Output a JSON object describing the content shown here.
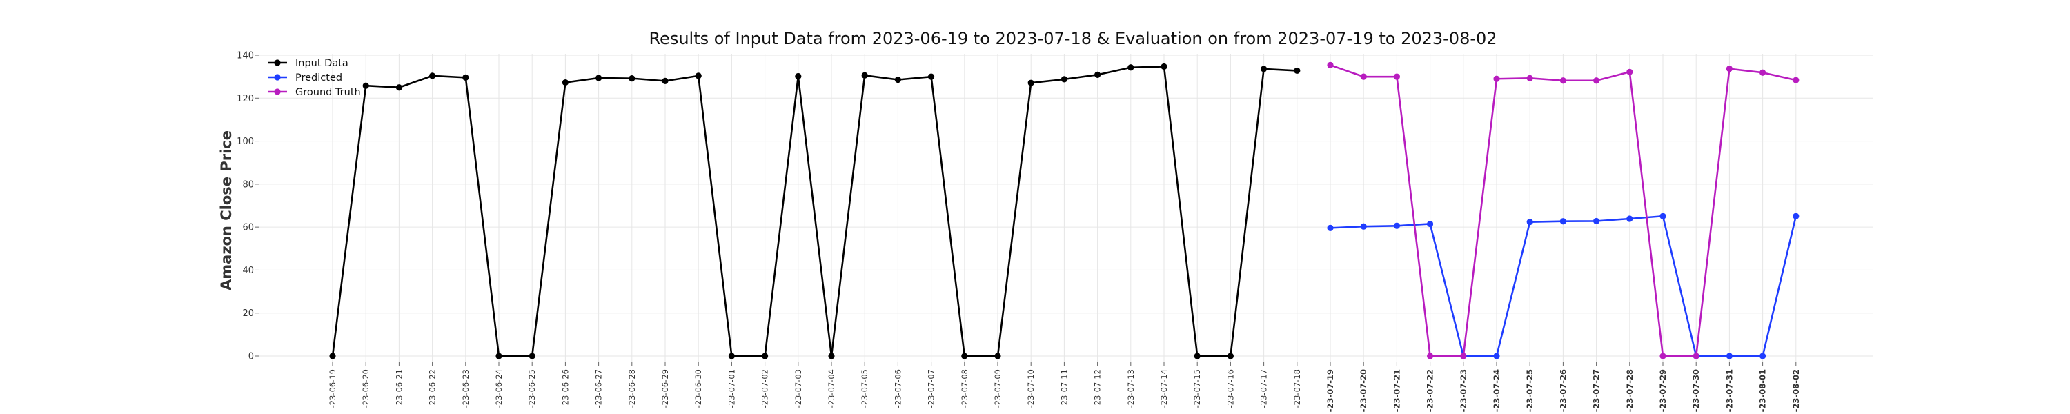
{
  "chart_data": {
    "type": "line",
    "title": "Results of Input Data from 2023-06-19 to 2023-07-18 & Evaluation on from 2023-07-19 to 2023-08-02",
    "xlabel": "",
    "ylabel": "Amazon Close Price",
    "ylim": [
      0,
      140
    ],
    "yticks": [
      0,
      20,
      40,
      60,
      80,
      100,
      120,
      140
    ],
    "grid": true,
    "legend_position": "top-left",
    "x_tick_labels": [
      "2023-06-19",
      "2023-06-20",
      "2023-06-21",
      "2023-06-22",
      "2023-06-23",
      "2023-06-24",
      "2023-06-25",
      "2023-06-26",
      "2023-06-27",
      "2023-06-28",
      "2023-06-29",
      "2023-06-30",
      "2023-07-01",
      "2023-07-02",
      "2023-07-03",
      "2023-07-04",
      "2023-07-05",
      "2023-07-06",
      "2023-07-07",
      "2023-07-08",
      "2023-07-09",
      "2023-07-10",
      "2023-07-11",
      "2023-07-12",
      "2023-07-13",
      "2023-07-14",
      "2023-07-15",
      "2023-07-16",
      "2023-07-17",
      "2023-07-18",
      "2023-07-19",
      "2023-07-20",
      "2023-07-21",
      "2023-07-22",
      "2023-07-23",
      "2023-07-24",
      "2023-07-25",
      "2023-07-26",
      "2023-07-27",
      "2023-07-28",
      "2023-07-29",
      "2023-07-30",
      "2023-07-31",
      "2023-08-01",
      "2023-08-02"
    ],
    "x_tick_display": [
      "-23-06-19",
      "-23-06-20",
      "-23-06-21",
      "-23-06-22",
      "-23-06-23",
      "-23-06-24",
      "-23-06-25",
      "-23-06-26",
      "-23-06-27",
      "-23-06-28",
      "-23-06-29",
      "-23-06-30",
      "-23-07-01",
      "-23-07-02",
      "-23-07-03",
      "-23-07-04",
      "-23-07-05",
      "-23-07-06",
      "-23-07-07",
      "-23-07-08",
      "-23-07-09",
      "-23-07-10",
      "-23-07-11",
      "-23-07-12",
      "-23-07-13",
      "-23-07-14",
      "-23-07-15",
      "-23-07-16",
      "-23-07-17",
      "-23-07-18",
      "-23-07-19",
      "-23-07-20",
      "-23-07-21",
      "-23-07-22",
      "-23-07-23",
      "-23-07-24",
      "-23-07-25",
      "-23-07-26",
      "-23-07-27",
      "-23-07-28",
      "-23-07-29",
      "-23-07-30",
      "-23-07-31",
      "-23-08-01",
      "-23-08-02"
    ],
    "bold_from": "2023-07-19",
    "series": [
      {
        "name": "Input Data",
        "color": "#000000",
        "x": [
          "2023-06-19",
          "2023-06-20",
          "2023-06-21",
          "2023-06-22",
          "2023-06-23",
          "2023-06-24",
          "2023-06-25",
          "2023-06-26",
          "2023-06-27",
          "2023-06-28",
          "2023-06-29",
          "2023-06-30",
          "2023-07-01",
          "2023-07-02",
          "2023-07-03",
          "2023-07-04",
          "2023-07-05",
          "2023-07-06",
          "2023-07-07",
          "2023-07-08",
          "2023-07-09",
          "2023-07-10",
          "2023-07-11",
          "2023-07-12",
          "2023-07-13",
          "2023-07-14",
          "2023-07-15",
          "2023-07-16",
          "2023-07-17",
          "2023-07-18"
        ],
        "values": [
          0,
          125.8,
          125.0,
          130.4,
          129.6,
          0,
          0,
          127.3,
          129.4,
          129.2,
          128.0,
          130.4,
          0,
          0,
          130.2,
          0,
          130.6,
          128.6,
          130.0,
          0,
          0,
          127.1,
          128.8,
          130.9,
          134.3,
          134.7,
          0,
          0,
          133.6,
          132.8
        ]
      },
      {
        "name": "Predicted",
        "color": "#1f3dff",
        "x": [
          "2023-07-19",
          "2023-07-20",
          "2023-07-21",
          "2023-07-22",
          "2023-07-23",
          "2023-07-24",
          "2023-07-25",
          "2023-07-26",
          "2023-07-27",
          "2023-07-28",
          "2023-07-29",
          "2023-07-30",
          "2023-07-31",
          "2023-08-01",
          "2023-08-02"
        ],
        "values": [
          59.6,
          60.3,
          60.6,
          61.5,
          0,
          0,
          62.4,
          62.7,
          62.8,
          63.9,
          65.1,
          0,
          0,
          0,
          65.1
        ]
      },
      {
        "name": "Ground Truth",
        "color": "#b81cbf",
        "x": [
          "2023-07-19",
          "2023-07-20",
          "2023-07-21",
          "2023-07-22",
          "2023-07-23",
          "2023-07-24",
          "2023-07-25",
          "2023-07-26",
          "2023-07-27",
          "2023-07-28",
          "2023-07-29",
          "2023-07-30",
          "2023-07-31",
          "2023-08-01",
          "2023-08-02"
        ],
        "values": [
          135.4,
          130.0,
          130.0,
          0,
          0,
          129.0,
          129.3,
          128.2,
          128.2,
          132.2,
          0,
          0,
          133.7,
          131.9,
          128.4
        ]
      }
    ]
  }
}
